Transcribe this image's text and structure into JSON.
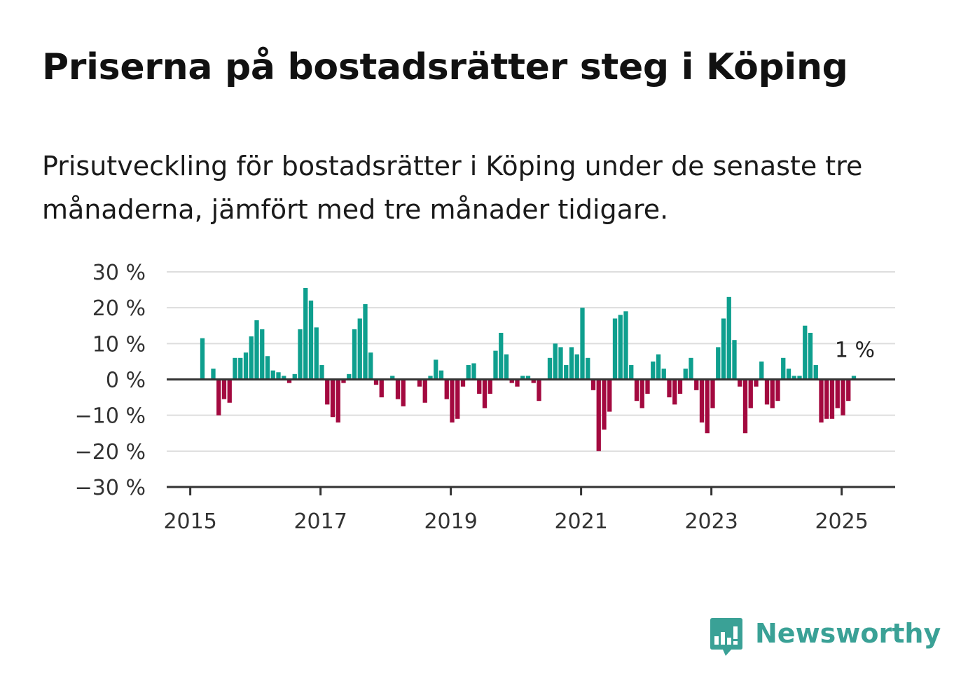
{
  "title": "Priserna på bostadsrätter steg i Köping",
  "subtitle": "Prisutveckling för bostadsrätter i Köping under de senaste tre månaderna, jämfört med tre månader tidigare.",
  "brand": {
    "name": "Newsworthy",
    "icon": "bar-chart-speech-bubble-icon",
    "color": "#3aa196"
  },
  "colors": {
    "positive": "#0e9f8e",
    "negative": "#a3093f",
    "grid": "#dddddd",
    "axis": "#333333"
  },
  "chart_data": {
    "type": "bar",
    "x_unit": "month",
    "start": "2015-01",
    "values": [
      null,
      null,
      11.5,
      null,
      3,
      -10,
      -5.5,
      -6.5,
      6,
      6,
      7.5,
      12,
      16.5,
      14,
      6.5,
      2.5,
      2,
      1,
      -1,
      1.5,
      14,
      25.5,
      22,
      14.5,
      4,
      -7,
      -10.5,
      -12,
      -1,
      1.5,
      14,
      17,
      21,
      7.5,
      -1.5,
      -5,
      null,
      1,
      -5.5,
      -7.5,
      null,
      null,
      -2,
      -6.5,
      1,
      5.5,
      2.5,
      -5.5,
      -12,
      -11,
      -2,
      4,
      4.5,
      -4,
      -8,
      -4,
      8,
      13,
      7,
      -1,
      -2,
      1,
      1,
      -1,
      -6,
      null,
      6,
      10,
      9,
      4,
      9,
      7,
      20,
      6,
      -3,
      -20,
      -14,
      -9,
      17,
      18,
      19,
      4,
      -6,
      -8,
      -4,
      5,
      7,
      3,
      -5,
      -7,
      -4,
      3,
      6,
      -3,
      -12,
      -15,
      -8,
      9,
      17,
      23,
      11,
      -2,
      -15,
      -8,
      -2,
      5,
      -7,
      -8,
      -6,
      6,
      3,
      1,
      1,
      15,
      13,
      4,
      -12,
      -11,
      -11,
      -8,
      -10,
      -6,
      1
    ],
    "ylim": [
      -30,
      30
    ],
    "yticks": [
      "30 %",
      "20 %",
      "10 %",
      "0 %",
      "−10 %",
      "−20 %",
      "−30 %"
    ],
    "ytick_values": [
      30,
      20,
      10,
      0,
      -10,
      -20,
      -30
    ],
    "xticks": [
      "2015",
      "2017",
      "2019",
      "2021",
      "2023",
      "2025"
    ],
    "end_label": "1 %",
    "grid": true,
    "legend": "none"
  }
}
